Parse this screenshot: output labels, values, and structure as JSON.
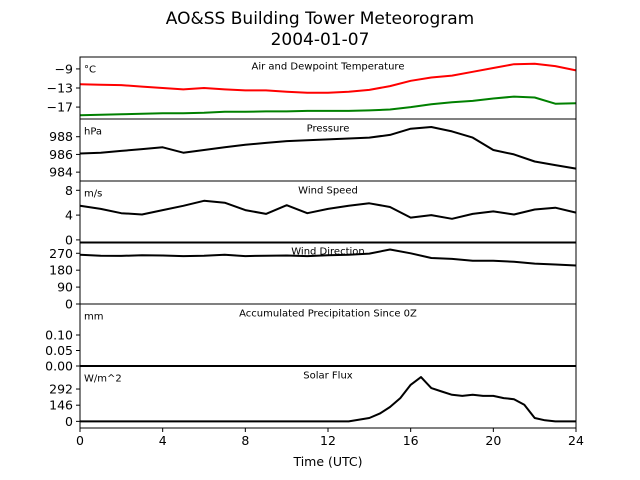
{
  "figure": {
    "title_line1": "AO&SS Building Tower Meteorogram",
    "title_line2": "2004-01-07",
    "xlabel": "Time (UTC)"
  },
  "chart_data": [
    {
      "type": "line",
      "title": "Air and Dewpoint Temperature",
      "unit_label": "°C",
      "ylim": [
        -19.5,
        -6.5
      ],
      "yticks": [
        -9,
        -13,
        -17
      ],
      "ytick_labels": [
        "−9",
        "−13",
        "−17"
      ],
      "x": [
        0,
        1,
        2,
        3,
        4,
        5,
        6,
        7,
        8,
        9,
        10,
        11,
        12,
        13,
        14,
        15,
        16,
        17,
        18,
        19,
        20,
        21,
        22,
        23,
        24
      ],
      "series": [
        {
          "color": "#ff0000",
          "values": [
            -12.2,
            -12.3,
            -12.4,
            -12.7,
            -13.0,
            -13.3,
            -13.0,
            -13.3,
            -13.5,
            -13.5,
            -13.8,
            -14.0,
            -14.0,
            -13.8,
            -13.4,
            -12.6,
            -11.5,
            -10.8,
            -10.4,
            -9.6,
            -8.8,
            -8.0,
            -7.9,
            -8.4,
            -9.3
          ]
        },
        {
          "color": "#008000",
          "values": [
            -18.7,
            -18.6,
            -18.5,
            -18.4,
            -18.3,
            -18.3,
            -18.2,
            -18.0,
            -18.0,
            -17.9,
            -17.9,
            -17.8,
            -17.8,
            -17.8,
            -17.7,
            -17.5,
            -17.0,
            -16.4,
            -16.0,
            -15.7,
            -15.2,
            -14.8,
            -15.0,
            -16.3,
            -16.2
          ]
        }
      ]
    },
    {
      "type": "line",
      "title": "Pressure",
      "unit_label": "hPa",
      "ylim": [
        983.0,
        990.0
      ],
      "yticks": [
        988,
        986,
        984
      ],
      "ytick_labels": [
        "988",
        "986",
        "984"
      ],
      "x": [
        0,
        1,
        2,
        3,
        4,
        5,
        6,
        7,
        8,
        9,
        10,
        11,
        12,
        13,
        14,
        15,
        16,
        17,
        18,
        19,
        20,
        21,
        22,
        23,
        24
      ],
      "series": [
        {
          "color": "#000000",
          "values": [
            986.1,
            986.2,
            986.4,
            986.6,
            986.8,
            986.2,
            986.5,
            986.8,
            987.1,
            987.3,
            987.5,
            987.6,
            987.7,
            987.8,
            987.9,
            988.2,
            988.9,
            989.1,
            988.6,
            987.9,
            986.5,
            986.0,
            985.2,
            984.8,
            984.4
          ]
        }
      ]
    },
    {
      "type": "line",
      "title": "Wind Speed",
      "unit_label": "m/s",
      "ylim": [
        -0.5,
        9.5
      ],
      "yticks": [
        8,
        4,
        0
      ],
      "ytick_labels": [
        "8",
        "4",
        "0"
      ],
      "x": [
        0,
        1,
        2,
        3,
        4,
        5,
        6,
        7,
        8,
        9,
        10,
        11,
        12,
        13,
        14,
        15,
        16,
        17,
        18,
        19,
        20,
        21,
        22,
        23,
        24
      ],
      "series": [
        {
          "color": "#000000",
          "values": [
            5.5,
            5.0,
            4.3,
            4.1,
            4.8,
            5.5,
            6.3,
            6.0,
            4.8,
            4.2,
            5.6,
            4.3,
            5.0,
            5.5,
            5.9,
            5.3,
            3.6,
            4.0,
            3.4,
            4.2,
            4.6,
            4.1,
            4.9,
            5.2,
            4.4
          ]
        }
      ]
    },
    {
      "type": "line",
      "title": "Wind Direction",
      "unit_label": "",
      "ylim": [
        0,
        330
      ],
      "yticks": [
        270,
        180,
        90,
        0
      ],
      "ytick_labels": [
        "270",
        "180",
        "90",
        "0"
      ],
      "x": [
        0,
        1,
        2,
        3,
        4,
        5,
        6,
        7,
        8,
        9,
        10,
        11,
        12,
        13,
        14,
        15,
        16,
        17,
        18,
        19,
        20,
        21,
        22,
        23,
        24
      ],
      "series": [
        {
          "color": "#000000",
          "values": [
            262,
            257,
            256,
            260,
            258,
            255,
            257,
            262,
            255,
            257,
            258,
            255,
            260,
            262,
            268,
            290,
            270,
            245,
            240,
            230,
            230,
            225,
            215,
            210,
            205
          ]
        }
      ]
    },
    {
      "type": "line",
      "title": "Accumulated Precipitation Since 0Z",
      "unit_label": "mm",
      "ylim": [
        0,
        0.2
      ],
      "yticks": [
        0.1,
        0.05,
        0.0
      ],
      "ytick_labels": [
        "0.10",
        "0.05",
        "0.00"
      ],
      "x": [
        0,
        24
      ],
      "series": [
        {
          "color": "#000000",
          "values": [
            0,
            0
          ]
        }
      ]
    },
    {
      "type": "line",
      "title": "Solar Flux",
      "unit_label": "W/m^2",
      "ylim": [
        -60,
        500
      ],
      "yticks": [
        292,
        146,
        0
      ],
      "ytick_labels": [
        "292",
        "146",
        "0"
      ],
      "x": [
        0,
        1,
        2,
        3,
        4,
        5,
        6,
        7,
        8,
        9,
        10,
        11,
        12,
        13,
        14,
        14.5,
        15,
        15.5,
        16,
        16.5,
        17,
        17.5,
        18,
        18.5,
        19,
        19.5,
        20,
        20.5,
        21,
        21.5,
        22,
        22.5,
        23,
        24
      ],
      "series": [
        {
          "color": "#000000",
          "values": [
            0,
            0,
            0,
            0,
            0,
            0,
            0,
            0,
            0,
            0,
            0,
            0,
            0,
            0,
            30,
            70,
            130,
            210,
            330,
            400,
            300,
            270,
            240,
            230,
            240,
            230,
            230,
            210,
            200,
            150,
            30,
            10,
            0,
            0
          ]
        }
      ]
    }
  ],
  "xaxis": {
    "range": [
      0,
      24
    ],
    "ticks": [
      0,
      4,
      8,
      12,
      16,
      20,
      24
    ],
    "tick_labels": [
      "0",
      "4",
      "8",
      "12",
      "16",
      "20",
      "24"
    ]
  }
}
